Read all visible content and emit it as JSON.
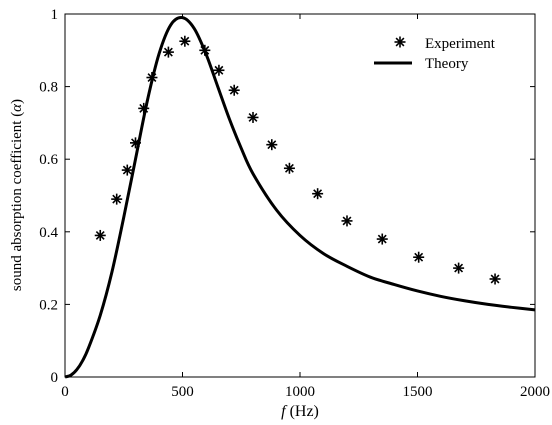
{
  "chart_data": {
    "type": "scatter",
    "xlabel": {
      "symbol": "f",
      "text": " (Hz)"
    },
    "ylabel": {
      "text": "sound absorption coefficient (",
      "symbol": "α",
      "close": ")"
    },
    "xlim": [
      0,
      2000
    ],
    "ylim": [
      0,
      1
    ],
    "x_ticks": [
      "0",
      "500",
      "1000",
      "1500",
      "2000"
    ],
    "y_ticks": [
      "0",
      "0.2",
      "0.4",
      "0.6",
      "0.8",
      "1"
    ],
    "x_tick_values": [
      0,
      500,
      1000,
      1500,
      2000
    ],
    "y_tick_values": [
      0,
      0.2,
      0.4,
      0.6,
      0.8,
      1
    ],
    "grid": false,
    "legend_position": "top-right",
    "series": [
      {
        "name": "Experiment",
        "marker": "asterisk",
        "color": "#000000",
        "x": [
          150,
          220,
          265,
          300,
          335,
          370,
          440,
          510,
          595,
          655,
          720,
          800,
          880,
          955,
          1075,
          1200,
          1350,
          1505,
          1675,
          1830
        ],
        "y": [
          0.39,
          0.49,
          0.57,
          0.645,
          0.74,
          0.825,
          0.895,
          0.925,
          0.9,
          0.845,
          0.79,
          0.715,
          0.64,
          0.575,
          0.505,
          0.43,
          0.38,
          0.33,
          0.3,
          0.27
        ]
      },
      {
        "name": "Theory",
        "marker": "line",
        "color": "#000000",
        "x": [
          0,
          25,
          50,
          75,
          100,
          150,
          200,
          250,
          300,
          350,
          400,
          450,
          500,
          550,
          600,
          650,
          700,
          750,
          800,
          900,
          1000,
          1100,
          1200,
          1300,
          1400,
          1500,
          1600,
          1700,
          1800,
          1900,
          2000
        ],
        "y": [
          0,
          0.005,
          0.02,
          0.045,
          0.08,
          0.17,
          0.29,
          0.44,
          0.6,
          0.76,
          0.89,
          0.97,
          0.99,
          0.96,
          0.89,
          0.8,
          0.71,
          0.63,
          0.56,
          0.46,
          0.39,
          0.34,
          0.305,
          0.275,
          0.255,
          0.237,
          0.222,
          0.21,
          0.2,
          0.192,
          0.185
        ]
      }
    ]
  }
}
